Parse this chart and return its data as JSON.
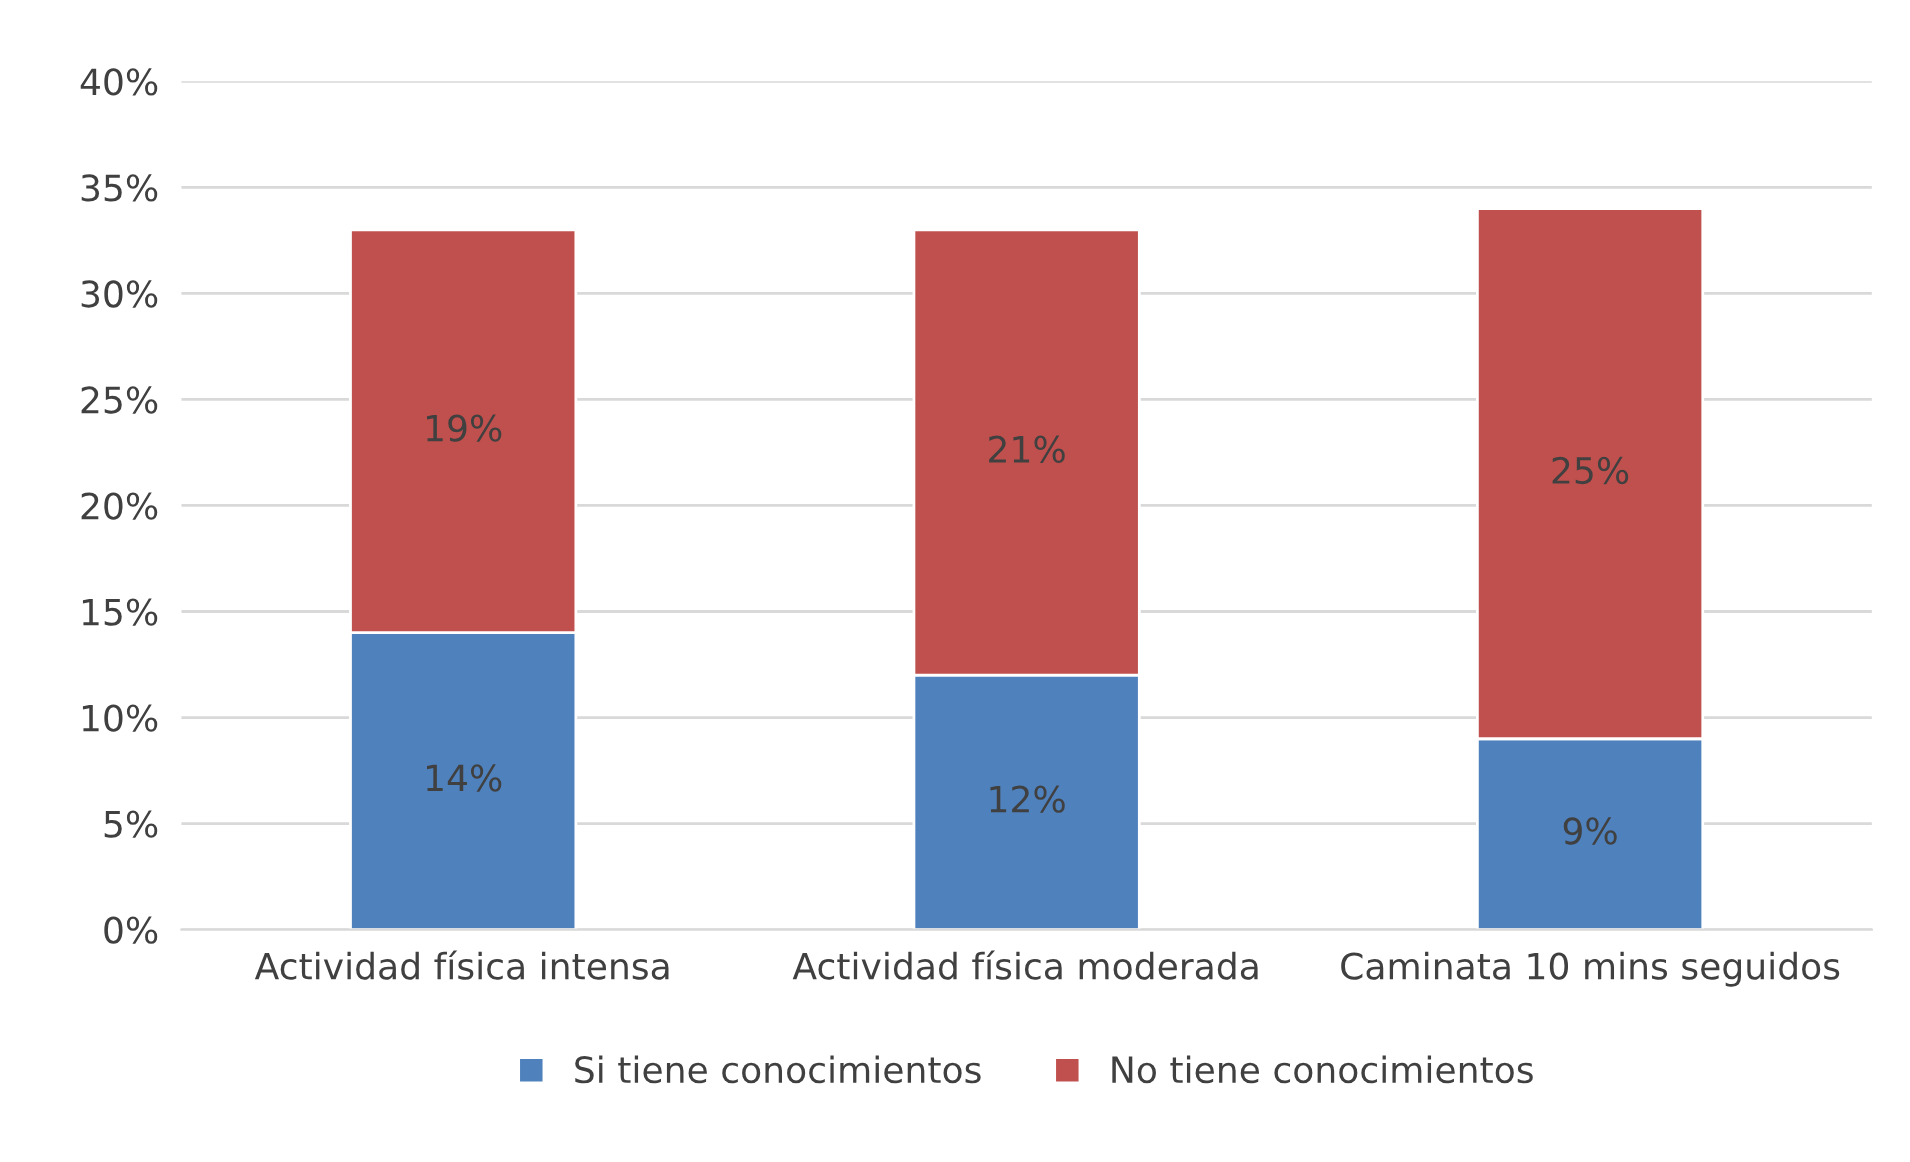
{
  "chart_data": {
    "type": "bar",
    "stacked": true,
    "categories": [
      "Actividad física intensa",
      "Actividad física moderada",
      "Caminata 10 mins seguidos"
    ],
    "series": [
      {
        "name": "Si tiene conocimientos",
        "color": "#4f81bd",
        "values": [
          14,
          12,
          9
        ],
        "value_labels": [
          "14%",
          "12%",
          "9%"
        ]
      },
      {
        "name": "No tiene conocimientos",
        "color": "#c0504d",
        "values": [
          19,
          21,
          25
        ],
        "value_labels": [
          "19%",
          "21%",
          "25%"
        ]
      }
    ],
    "ylim": [
      0,
      40
    ],
    "yticks": [
      {
        "value": 0,
        "label": "0%"
      },
      {
        "value": 5,
        "label": "5%"
      },
      {
        "value": 10,
        "label": "10%"
      },
      {
        "value": 15,
        "label": "15%"
      },
      {
        "value": 20,
        "label": "20%"
      },
      {
        "value": 25,
        "label": "25%"
      },
      {
        "value": 30,
        "label": "30%"
      },
      {
        "value": 35,
        "label": "35%"
      },
      {
        "value": 40,
        "label": "40%"
      }
    ],
    "grid": "y",
    "legend": "bottom"
  }
}
